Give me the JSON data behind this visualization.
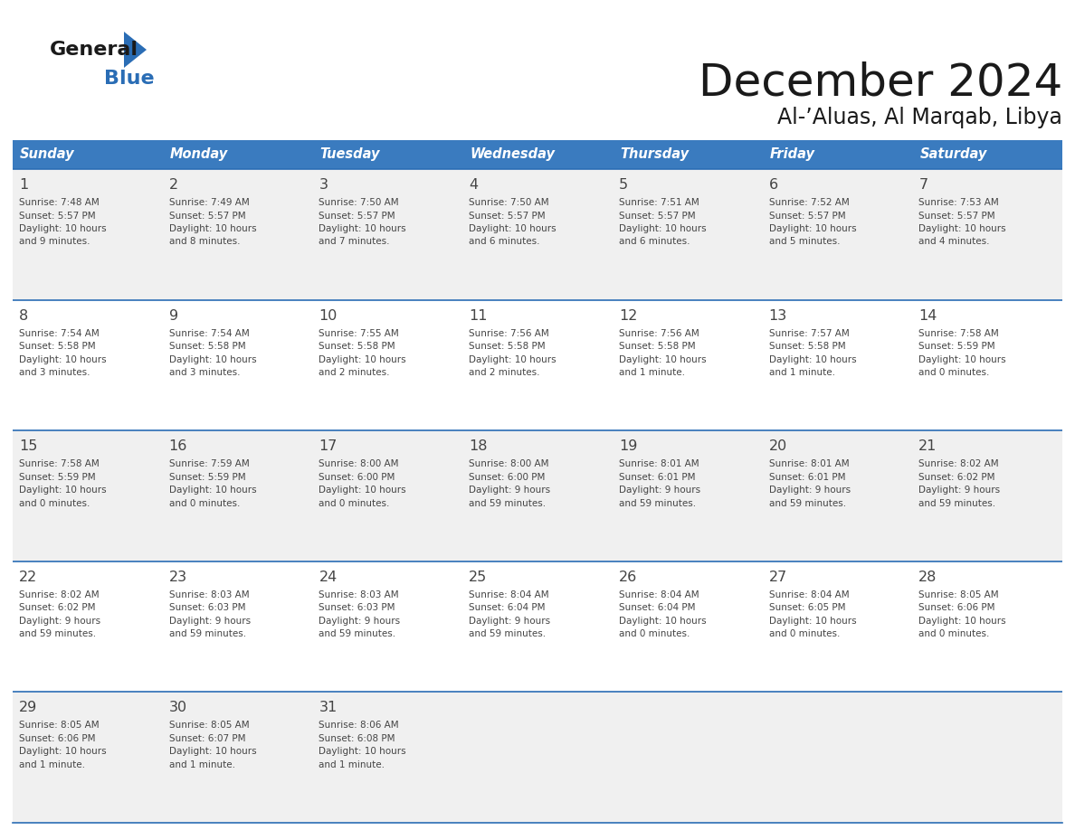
{
  "title": "December 2024",
  "subtitle": "Al-’Aluas, Al Marqab, Libya",
  "header_color": "#3a7bbf",
  "header_text_color": "#ffffff",
  "row_bg_even": "#f0f0f0",
  "row_bg_odd": "#ffffff",
  "day_names": [
    "Sunday",
    "Monday",
    "Tuesday",
    "Wednesday",
    "Thursday",
    "Friday",
    "Saturday"
  ],
  "days": [
    {
      "day": 1,
      "col": 0,
      "row": 0,
      "sunrise": "7:48 AM",
      "sunset": "5:57 PM",
      "daylight": "10 hours",
      "daylight2": "and 9 minutes."
    },
    {
      "day": 2,
      "col": 1,
      "row": 0,
      "sunrise": "7:49 AM",
      "sunset": "5:57 PM",
      "daylight": "10 hours",
      "daylight2": "and 8 minutes."
    },
    {
      "day": 3,
      "col": 2,
      "row": 0,
      "sunrise": "7:50 AM",
      "sunset": "5:57 PM",
      "daylight": "10 hours",
      "daylight2": "and 7 minutes."
    },
    {
      "day": 4,
      "col": 3,
      "row": 0,
      "sunrise": "7:50 AM",
      "sunset": "5:57 PM",
      "daylight": "10 hours",
      "daylight2": "and 6 minutes."
    },
    {
      "day": 5,
      "col": 4,
      "row": 0,
      "sunrise": "7:51 AM",
      "sunset": "5:57 PM",
      "daylight": "10 hours",
      "daylight2": "and 6 minutes."
    },
    {
      "day": 6,
      "col": 5,
      "row": 0,
      "sunrise": "7:52 AM",
      "sunset": "5:57 PM",
      "daylight": "10 hours",
      "daylight2": "and 5 minutes."
    },
    {
      "day": 7,
      "col": 6,
      "row": 0,
      "sunrise": "7:53 AM",
      "sunset": "5:57 PM",
      "daylight": "10 hours",
      "daylight2": "and 4 minutes."
    },
    {
      "day": 8,
      "col": 0,
      "row": 1,
      "sunrise": "7:54 AM",
      "sunset": "5:58 PM",
      "daylight": "10 hours",
      "daylight2": "and 3 minutes."
    },
    {
      "day": 9,
      "col": 1,
      "row": 1,
      "sunrise": "7:54 AM",
      "sunset": "5:58 PM",
      "daylight": "10 hours",
      "daylight2": "and 3 minutes."
    },
    {
      "day": 10,
      "col": 2,
      "row": 1,
      "sunrise": "7:55 AM",
      "sunset": "5:58 PM",
      "daylight": "10 hours",
      "daylight2": "and 2 minutes."
    },
    {
      "day": 11,
      "col": 3,
      "row": 1,
      "sunrise": "7:56 AM",
      "sunset": "5:58 PM",
      "daylight": "10 hours",
      "daylight2": "and 2 minutes."
    },
    {
      "day": 12,
      "col": 4,
      "row": 1,
      "sunrise": "7:56 AM",
      "sunset": "5:58 PM",
      "daylight": "10 hours",
      "daylight2": "and 1 minute."
    },
    {
      "day": 13,
      "col": 5,
      "row": 1,
      "sunrise": "7:57 AM",
      "sunset": "5:58 PM",
      "daylight": "10 hours",
      "daylight2": "and 1 minute."
    },
    {
      "day": 14,
      "col": 6,
      "row": 1,
      "sunrise": "7:58 AM",
      "sunset": "5:59 PM",
      "daylight": "10 hours",
      "daylight2": "and 0 minutes."
    },
    {
      "day": 15,
      "col": 0,
      "row": 2,
      "sunrise": "7:58 AM",
      "sunset": "5:59 PM",
      "daylight": "10 hours",
      "daylight2": "and 0 minutes."
    },
    {
      "day": 16,
      "col": 1,
      "row": 2,
      "sunrise": "7:59 AM",
      "sunset": "5:59 PM",
      "daylight": "10 hours",
      "daylight2": "and 0 minutes."
    },
    {
      "day": 17,
      "col": 2,
      "row": 2,
      "sunrise": "8:00 AM",
      "sunset": "6:00 PM",
      "daylight": "10 hours",
      "daylight2": "and 0 minutes."
    },
    {
      "day": 18,
      "col": 3,
      "row": 2,
      "sunrise": "8:00 AM",
      "sunset": "6:00 PM",
      "daylight": "9 hours",
      "daylight2": "and 59 minutes."
    },
    {
      "day": 19,
      "col": 4,
      "row": 2,
      "sunrise": "8:01 AM",
      "sunset": "6:01 PM",
      "daylight": "9 hours",
      "daylight2": "and 59 minutes."
    },
    {
      "day": 20,
      "col": 5,
      "row": 2,
      "sunrise": "8:01 AM",
      "sunset": "6:01 PM",
      "daylight": "9 hours",
      "daylight2": "and 59 minutes."
    },
    {
      "day": 21,
      "col": 6,
      "row": 2,
      "sunrise": "8:02 AM",
      "sunset": "6:02 PM",
      "daylight": "9 hours",
      "daylight2": "and 59 minutes."
    },
    {
      "day": 22,
      "col": 0,
      "row": 3,
      "sunrise": "8:02 AM",
      "sunset": "6:02 PM",
      "daylight": "9 hours",
      "daylight2": "and 59 minutes."
    },
    {
      "day": 23,
      "col": 1,
      "row": 3,
      "sunrise": "8:03 AM",
      "sunset": "6:03 PM",
      "daylight": "9 hours",
      "daylight2": "and 59 minutes."
    },
    {
      "day": 24,
      "col": 2,
      "row": 3,
      "sunrise": "8:03 AM",
      "sunset": "6:03 PM",
      "daylight": "9 hours",
      "daylight2": "and 59 minutes."
    },
    {
      "day": 25,
      "col": 3,
      "row": 3,
      "sunrise": "8:04 AM",
      "sunset": "6:04 PM",
      "daylight": "9 hours",
      "daylight2": "and 59 minutes."
    },
    {
      "day": 26,
      "col": 4,
      "row": 3,
      "sunrise": "8:04 AM",
      "sunset": "6:04 PM",
      "daylight": "10 hours",
      "daylight2": "and 0 minutes."
    },
    {
      "day": 27,
      "col": 5,
      "row": 3,
      "sunrise": "8:04 AM",
      "sunset": "6:05 PM",
      "daylight": "10 hours",
      "daylight2": "and 0 minutes."
    },
    {
      "day": 28,
      "col": 6,
      "row": 3,
      "sunrise": "8:05 AM",
      "sunset": "6:06 PM",
      "daylight": "10 hours",
      "daylight2": "and 0 minutes."
    },
    {
      "day": 29,
      "col": 0,
      "row": 4,
      "sunrise": "8:05 AM",
      "sunset": "6:06 PM",
      "daylight": "10 hours",
      "daylight2": "and 1 minute."
    },
    {
      "day": 30,
      "col": 1,
      "row": 4,
      "sunrise": "8:05 AM",
      "sunset": "6:07 PM",
      "daylight": "10 hours",
      "daylight2": "and 1 minute."
    },
    {
      "day": 31,
      "col": 2,
      "row": 4,
      "sunrise": "8:06 AM",
      "sunset": "6:08 PM",
      "daylight": "10 hours",
      "daylight2": "and 1 minute."
    }
  ],
  "n_rows": 5,
  "n_cols": 7,
  "logo_general_color": "#1a1a1a",
  "logo_blue_color": "#2a6db5",
  "text_color": "#444444",
  "separator_color": "#2a6db5",
  "title_color": "#1a1a1a",
  "subtitle_color": "#1a1a1a"
}
